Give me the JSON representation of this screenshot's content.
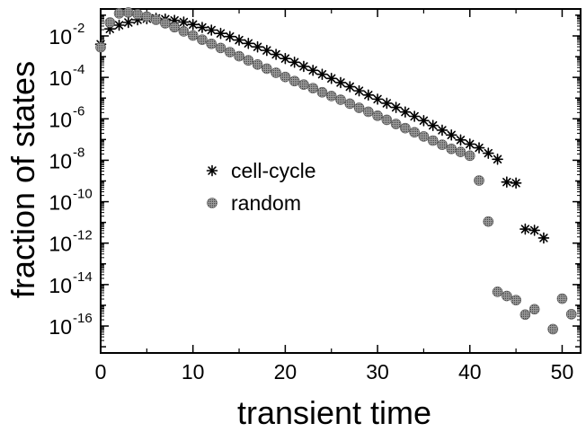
{
  "chart_data": {
    "type": "scatter",
    "xlabel": "transient time",
    "ylabel": "fraction of states",
    "xlim": [
      0,
      52
    ],
    "ylim_log10": [
      -17.3,
      -0.7
    ],
    "y_scale": "log",
    "x_ticks": [
      0,
      10,
      20,
      30,
      40,
      50
    ],
    "y_ticks_exponents": [
      -2,
      -4,
      -6,
      -8,
      -10,
      -12,
      -14,
      -16
    ],
    "y_tick_base": "10",
    "legend_position": "center-left",
    "series": [
      {
        "name": "cell-cycle",
        "marker": "asterisk",
        "color": "#000000",
        "points": [
          [
            0,
            0.00398
          ],
          [
            1,
            0.0219
          ],
          [
            2,
            0.0331
          ],
          [
            3,
            0.0447
          ],
          [
            4,
            0.0603
          ],
          [
            5,
            0.0676
          ],
          [
            6,
            0.0708
          ],
          [
            7,
            0.0646
          ],
          [
            8,
            0.0562
          ],
          [
            9,
            0.0468
          ],
          [
            10,
            0.0355
          ],
          [
            11,
            0.0257
          ],
          [
            12,
            0.0191
          ],
          [
            13,
            0.0132
          ],
          [
            14,
            0.00933
          ],
          [
            15,
            0.00631
          ],
          [
            16,
            0.00437
          ],
          [
            17,
            0.00295
          ],
          [
            18,
            0.002
          ],
          [
            19,
            0.00129
          ],
          [
            20,
            0.000813
          ],
          [
            21,
            0.000537
          ],
          [
            22,
            0.000339
          ],
          [
            23,
            0.000219
          ],
          [
            24,
            0.000141
          ],
          [
            25,
            8.91e-05
          ],
          [
            26,
            5.62e-05
          ],
          [
            27,
            3.55e-05
          ],
          [
            28,
            2.24e-05
          ],
          [
            29,
            1.41e-05
          ],
          [
            30,
            8.91e-06
          ],
          [
            31,
            5.62e-06
          ],
          [
            32,
            3.55e-06
          ],
          [
            33,
            2.14e-06
          ],
          [
            34,
            1.32e-06
          ],
          [
            35,
            8.13e-07
          ],
          [
            36,
            4.79e-07
          ],
          [
            37,
            2.82e-07
          ],
          [
            38,
            1.66e-07
          ],
          [
            39,
            9.55e-08
          ],
          [
            40,
            6.03e-08
          ],
          [
            41,
            3.98e-08
          ],
          [
            42,
            2.19e-08
          ],
          [
            43,
            1.12e-08
          ],
          [
            44,
            8.91e-10
          ],
          [
            45,
            7.94e-10
          ],
          [
            46,
            4.79e-12
          ],
          [
            47,
            4.17e-12
          ],
          [
            48,
            1.78e-12
          ]
        ]
      },
      {
        "name": "random",
        "marker": "circle",
        "color": "#888888",
        "points": [
          [
            0,
            0.00282
          ],
          [
            1,
            0.0447
          ],
          [
            2,
            0.123
          ],
          [
            3,
            0.135
          ],
          [
            4,
            0.112
          ],
          [
            5,
            0.0851
          ],
          [
            6,
            0.0603
          ],
          [
            7,
            0.0407
          ],
          [
            8,
            0.0263
          ],
          [
            9,
            0.0166
          ],
          [
            10,
            0.0105
          ],
          [
            11,
            0.00661
          ],
          [
            12,
            0.00417
          ],
          [
            13,
            0.00263
          ],
          [
            14,
            0.00166
          ],
          [
            15,
            0.00105
          ],
          [
            16,
            0.000661
          ],
          [
            17,
            0.000417
          ],
          [
            18,
            0.000263
          ],
          [
            19,
            0.000166
          ],
          [
            20,
            0.000105
          ],
          [
            21,
            6.61e-05
          ],
          [
            22,
            4.47e-05
          ],
          [
            23,
            3.02e-05
          ],
          [
            24,
            1.91e-05
          ],
          [
            25,
            1.26e-05
          ],
          [
            26,
            8.32e-06
          ],
          [
            27,
            5.37e-06
          ],
          [
            28,
            3.39e-06
          ],
          [
            29,
            2.19e-06
          ],
          [
            30,
            1.41e-06
          ],
          [
            31,
            8.91e-07
          ],
          [
            32,
            5.62e-07
          ],
          [
            33,
            3.55e-07
          ],
          [
            34,
            2.24e-07
          ],
          [
            35,
            1.41e-07
          ],
          [
            36,
            8.91e-08
          ],
          [
            37,
            5.62e-08
          ],
          [
            38,
            3.55e-08
          ],
          [
            39,
            2.51e-08
          ],
          [
            40,
            1.66e-08
          ],
          [
            41,
            1.05e-09
          ],
          [
            42,
            1.1e-11
          ],
          [
            43,
            4.47e-15
          ],
          [
            44,
            2.82e-15
          ],
          [
            45,
            1.78e-15
          ],
          [
            46,
            3.55e-16
          ],
          [
            47,
            6.46e-16
          ],
          [
            49,
            7.08e-17
          ],
          [
            50,
            2.09e-15
          ],
          [
            51,
            3.72e-16
          ]
        ]
      }
    ]
  }
}
